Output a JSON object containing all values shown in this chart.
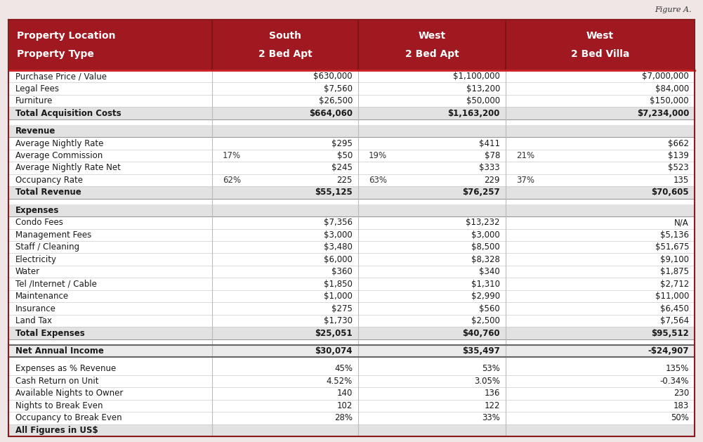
{
  "figure_label": "Figure A.",
  "header_bg": "#A01820",
  "header_text_color": "#FFFFFF",
  "top_bg": "#F0E6E6",
  "body_bg": "#FFFFFF",
  "border_color": "#AAAAAA",
  "dark_border": "#8B1A1A",
  "col_labels": [
    [
      "Property Location",
      "Property Type"
    ],
    [
      "South",
      "2 Bed Apt"
    ],
    [
      "West",
      "2 Bed Apt"
    ],
    [
      "West",
      "2 Bed Villa"
    ]
  ],
  "rows": [
    {
      "label": "Purchase Price / Value",
      "s1": "$630,000",
      "s2": "$1,100,000",
      "s3": "$7,000,000",
      "bold": false,
      "pct1": "",
      "pct2": "",
      "pct3": "",
      "spacer": false,
      "net": false,
      "section_header": false
    },
    {
      "label": "Legal Fees",
      "s1": "$7,560",
      "s2": "$13,200",
      "s3": "$84,000",
      "bold": false,
      "pct1": "",
      "pct2": "",
      "pct3": "",
      "spacer": false,
      "net": false,
      "section_header": false
    },
    {
      "label": "Furniture",
      "s1": "$26,500",
      "s2": "$50,000",
      "s3": "$150,000",
      "bold": false,
      "pct1": "",
      "pct2": "",
      "pct3": "",
      "spacer": false,
      "net": false,
      "section_header": false
    },
    {
      "label": "Total Acquisition Costs",
      "s1": "$664,060",
      "s2": "$1,163,200",
      "s3": "$7,234,000",
      "bold": true,
      "pct1": "",
      "pct2": "",
      "pct3": "",
      "spacer": false,
      "net": false,
      "section_header": false
    },
    {
      "label": "",
      "s1": "",
      "s2": "",
      "s3": "",
      "bold": false,
      "pct1": "",
      "pct2": "",
      "pct3": "",
      "spacer": true,
      "net": false,
      "section_header": false
    },
    {
      "label": "Revenue",
      "s1": "",
      "s2": "",
      "s3": "",
      "bold": true,
      "pct1": "",
      "pct2": "",
      "pct3": "",
      "spacer": false,
      "net": false,
      "section_header": true
    },
    {
      "label": "Average Nightly Rate",
      "s1": "$295",
      "s2": "$411",
      "s3": "$662",
      "bold": false,
      "pct1": "",
      "pct2": "",
      "pct3": "",
      "spacer": false,
      "net": false,
      "section_header": false
    },
    {
      "label": "Average Commission",
      "s1": "$50",
      "s2": "$78",
      "s3": "$139",
      "bold": false,
      "pct1": "17%",
      "pct2": "19%",
      "pct3": "21%",
      "spacer": false,
      "net": false,
      "section_header": false
    },
    {
      "label": "Average Nightly Rate Net",
      "s1": "$245",
      "s2": "$333",
      "s3": "$523",
      "bold": false,
      "pct1": "",
      "pct2": "",
      "pct3": "",
      "spacer": false,
      "net": false,
      "section_header": false
    },
    {
      "label": "Occupancy Rate",
      "s1": "225",
      "s2": "229",
      "s3": "135",
      "bold": false,
      "pct1": "62%",
      "pct2": "63%",
      "pct3": "37%",
      "spacer": false,
      "net": false,
      "section_header": false
    },
    {
      "label": "Total Revenue",
      "s1": "$55,125",
      "s2": "$76,257",
      "s3": "$70,605",
      "bold": true,
      "pct1": "",
      "pct2": "",
      "pct3": "",
      "spacer": false,
      "net": false,
      "section_header": false
    },
    {
      "label": "",
      "s1": "",
      "s2": "",
      "s3": "",
      "bold": false,
      "pct1": "",
      "pct2": "",
      "pct3": "",
      "spacer": true,
      "net": false,
      "section_header": false
    },
    {
      "label": "Expenses",
      "s1": "",
      "s2": "",
      "s3": "",
      "bold": true,
      "pct1": "",
      "pct2": "",
      "pct3": "",
      "spacer": false,
      "net": false,
      "section_header": true
    },
    {
      "label": "Condo Fees",
      "s1": "$7,356",
      "s2": "$13,232",
      "s3": "N/A",
      "bold": false,
      "pct1": "",
      "pct2": "",
      "pct3": "",
      "spacer": false,
      "net": false,
      "section_header": false
    },
    {
      "label": "Management Fees",
      "s1": "$3,000",
      "s2": "$3,000",
      "s3": "$5,136",
      "bold": false,
      "pct1": "",
      "pct2": "",
      "pct3": "",
      "spacer": false,
      "net": false,
      "section_header": false
    },
    {
      "label": "Staff / Cleaning",
      "s1": "$3,480",
      "s2": "$8,500",
      "s3": "$51,675",
      "bold": false,
      "pct1": "",
      "pct2": "",
      "pct3": "",
      "spacer": false,
      "net": false,
      "section_header": false
    },
    {
      "label": "Electricity",
      "s1": "$6,000",
      "s2": "$8,328",
      "s3": "$9,100",
      "bold": false,
      "pct1": "",
      "pct2": "",
      "pct3": "",
      "spacer": false,
      "net": false,
      "section_header": false
    },
    {
      "label": "Water",
      "s1": "$360",
      "s2": "$340",
      "s3": "$1,875",
      "bold": false,
      "pct1": "",
      "pct2": "",
      "pct3": "",
      "spacer": false,
      "net": false,
      "section_header": false
    },
    {
      "label": "Tel /Internet / Cable",
      "s1": "$1,850",
      "s2": "$1,310",
      "s3": "$2,712",
      "bold": false,
      "pct1": "",
      "pct2": "",
      "pct3": "",
      "spacer": false,
      "net": false,
      "section_header": false
    },
    {
      "label": "Maintenance",
      "s1": "$1,000",
      "s2": "$2,990",
      "s3": "$11,000",
      "bold": false,
      "pct1": "",
      "pct2": "",
      "pct3": "",
      "spacer": false,
      "net": false,
      "section_header": false
    },
    {
      "label": "Insurance",
      "s1": "$275",
      "s2": "$560",
      "s3": "$6,450",
      "bold": false,
      "pct1": "",
      "pct2": "",
      "pct3": "",
      "spacer": false,
      "net": false,
      "section_header": false
    },
    {
      "label": "Land Tax",
      "s1": "$1,730",
      "s2": "$2,500",
      "s3": "$7,564",
      "bold": false,
      "pct1": "",
      "pct2": "",
      "pct3": "",
      "spacer": false,
      "net": false,
      "section_header": false
    },
    {
      "label": "Total Expenses",
      "s1": "$25,051",
      "s2": "$40,760",
      "s3": "$95,512",
      "bold": true,
      "pct1": "",
      "pct2": "",
      "pct3": "",
      "spacer": false,
      "net": false,
      "section_header": false
    },
    {
      "label": "",
      "s1": "",
      "s2": "",
      "s3": "",
      "bold": false,
      "pct1": "",
      "pct2": "",
      "pct3": "",
      "spacer": true,
      "net": false,
      "section_header": false
    },
    {
      "label": "Net Annual Income",
      "s1": "$30,074",
      "s2": "$35,497",
      "s3": "-$24,907",
      "bold": true,
      "pct1": "",
      "pct2": "",
      "pct3": "",
      "spacer": false,
      "net": true,
      "section_header": false
    },
    {
      "label": "",
      "s1": "",
      "s2": "",
      "s3": "",
      "bold": false,
      "pct1": "",
      "pct2": "",
      "pct3": "",
      "spacer": true,
      "net": false,
      "section_header": false
    },
    {
      "label": "Expenses as % Revenue",
      "s1": "45%",
      "s2": "53%",
      "s3": "135%",
      "bold": false,
      "pct1": "",
      "pct2": "",
      "pct3": "",
      "spacer": false,
      "net": false,
      "section_header": false
    },
    {
      "label": "Cash Return on Unit",
      "s1": "4.52%",
      "s2": "3.05%",
      "s3": "-0.34%",
      "bold": false,
      "pct1": "",
      "pct2": "",
      "pct3": "",
      "spacer": false,
      "net": false,
      "section_header": false
    },
    {
      "label": "Available Nights to Owner",
      "s1": "140",
      "s2": "136",
      "s3": "230",
      "bold": false,
      "pct1": "",
      "pct2": "",
      "pct3": "",
      "spacer": false,
      "net": false,
      "section_header": false
    },
    {
      "label": "Nights to Break Even",
      "s1": "102",
      "s2": "122",
      "s3": "183",
      "bold": false,
      "pct1": "",
      "pct2": "",
      "pct3": "",
      "spacer": false,
      "net": false,
      "section_header": false
    },
    {
      "label": "Occupancy to Break Even",
      "s1": "28%",
      "s2": "33%",
      "s3": "50%",
      "bold": false,
      "pct1": "",
      "pct2": "",
      "pct3": "",
      "spacer": false,
      "net": false,
      "section_header": false
    },
    {
      "label": "All Figures in US$",
      "s1": "",
      "s2": "",
      "s3": "",
      "bold": true,
      "pct1": "",
      "pct2": "",
      "pct3": "",
      "spacer": false,
      "net": false,
      "section_header": false
    }
  ]
}
